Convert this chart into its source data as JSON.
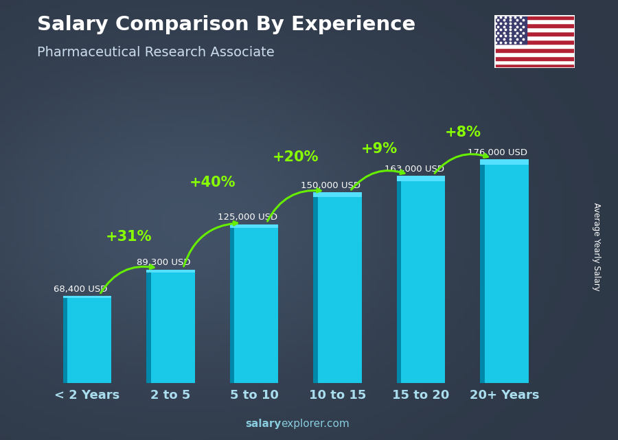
{
  "title": "Salary Comparison By Experience",
  "subtitle": "Pharmaceutical Research Associate",
  "categories": [
    "< 2 Years",
    "2 to 5",
    "5 to 10",
    "10 to 15",
    "15 to 20",
    "20+ Years"
  ],
  "values": [
    68400,
    89300,
    125000,
    150000,
    163000,
    176000
  ],
  "value_labels": [
    "68,400 USD",
    "89,300 USD",
    "125,000 USD",
    "150,000 USD",
    "163,000 USD",
    "176,000 USD"
  ],
  "pct_labels": [
    "+31%",
    "+40%",
    "+20%",
    "+9%",
    "+8%"
  ],
  "bar_face_color": "#1ac8e8",
  "bar_left_color": "#0088aa",
  "bar_top_color": "#55e0ff",
  "bg_color": "#2a3a4a",
  "text_color": "#ffffff",
  "value_text_color": "#ffffff",
  "pct_color": "#88ff00",
  "arrow_color": "#66ee00",
  "ylabel": "Average Yearly Salary",
  "watermark_salary": "salary",
  "watermark_rest": "explorer.com",
  "ylim_max": 215000,
  "bar_width": 0.58,
  "flag_stripes": [
    "#B22234",
    "#ffffff",
    "#B22234",
    "#ffffff",
    "#B22234",
    "#ffffff",
    "#B22234",
    "#ffffff",
    "#B22234",
    "#ffffff",
    "#B22234",
    "#ffffff",
    "#B22234"
  ],
  "flag_canton_color": "#3C3B6E"
}
